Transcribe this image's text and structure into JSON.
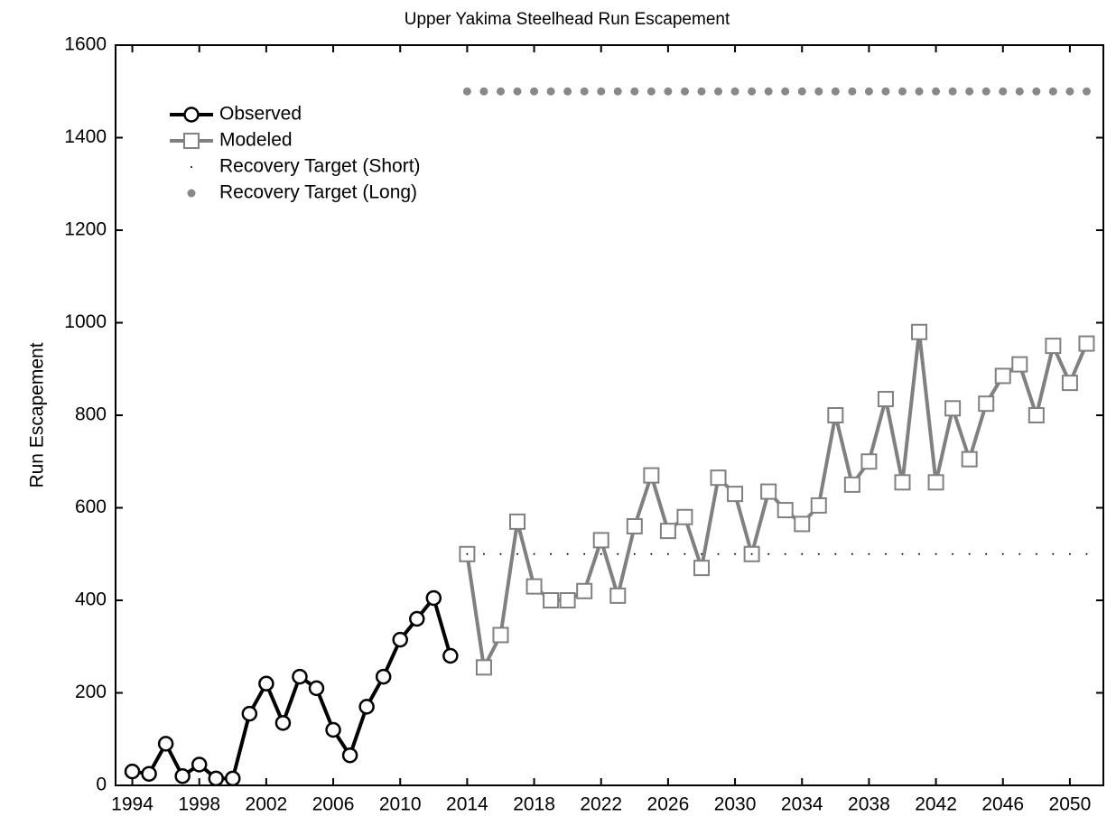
{
  "chart_data": {
    "type": "line",
    "title": "Upper Yakima Steelhead Run Escapement",
    "y_label": "Run Escapement",
    "xlim": [
      1993,
      2052
    ],
    "xticks": [
      1994,
      1998,
      2002,
      2006,
      2010,
      2014,
      2018,
      2022,
      2026,
      2030,
      2034,
      2038,
      2042,
      2046,
      2050
    ],
    "ylim": [
      0,
      1600
    ],
    "yticks": [
      0,
      200,
      400,
      600,
      800,
      1000,
      1200,
      1400,
      1600
    ],
    "legend": "upper left",
    "series": [
      {
        "name": "Observed",
        "color": "#000000",
        "marker": "circle",
        "style": "line",
        "x": [
          1994,
          1995,
          1996,
          1997,
          1998,
          1999,
          2000,
          2001,
          2002,
          2003,
          2004,
          2005,
          2006,
          2007,
          2008,
          2009,
          2010,
          2011,
          2012,
          2013
        ],
        "values": [
          30,
          25,
          90,
          20,
          45,
          15,
          15,
          155,
          220,
          135,
          235,
          210,
          120,
          65,
          170,
          235,
          315,
          360,
          405,
          280
        ]
      },
      {
        "name": "Modeled",
        "color": "#808080",
        "marker": "square",
        "style": "line",
        "x": [
          2014,
          2015,
          2016,
          2017,
          2018,
          2019,
          2020,
          2021,
          2022,
          2023,
          2024,
          2025,
          2026,
          2027,
          2028,
          2029,
          2030,
          2031,
          2032,
          2033,
          2034,
          2035,
          2036,
          2037,
          2038,
          2039,
          2040,
          2041,
          2042,
          2043,
          2044,
          2045,
          2046,
          2047,
          2048,
          2049,
          2050,
          2051
        ],
        "values": [
          500,
          255,
          325,
          570,
          430,
          400,
          400,
          420,
          530,
          410,
          560,
          670,
          550,
          580,
          470,
          665,
          630,
          500,
          635,
          595,
          565,
          605,
          800,
          650,
          700,
          835,
          655,
          980,
          655,
          815,
          705,
          825,
          885,
          910,
          800,
          950,
          870,
          955
        ]
      },
      {
        "name": "Recovery Target (Short)",
        "color": "#000000",
        "marker": "point",
        "style": "dots",
        "x": [
          2014,
          2015,
          2016,
          2017,
          2018,
          2019,
          2020,
          2021,
          2022,
          2023,
          2024,
          2025,
          2026,
          2027,
          2028,
          2029,
          2030,
          2031,
          2032,
          2033,
          2034,
          2035,
          2036,
          2037,
          2038,
          2039,
          2040,
          2041,
          2042,
          2043,
          2044,
          2045,
          2046,
          2047,
          2048,
          2049,
          2050,
          2051
        ],
        "values": [
          500,
          500,
          500,
          500,
          500,
          500,
          500,
          500,
          500,
          500,
          500,
          500,
          500,
          500,
          500,
          500,
          500,
          500,
          500,
          500,
          500,
          500,
          500,
          500,
          500,
          500,
          500,
          500,
          500,
          500,
          500,
          500,
          500,
          500,
          500,
          500,
          500,
          500
        ]
      },
      {
        "name": "Recovery Target (Long)",
        "color": "#888888",
        "marker": "dot",
        "style": "dots",
        "x": [
          2014,
          2015,
          2016,
          2017,
          2018,
          2019,
          2020,
          2021,
          2022,
          2023,
          2024,
          2025,
          2026,
          2027,
          2028,
          2029,
          2030,
          2031,
          2032,
          2033,
          2034,
          2035,
          2036,
          2037,
          2038,
          2039,
          2040,
          2041,
          2042,
          2043,
          2044,
          2045,
          2046,
          2047,
          2048,
          2049,
          2050,
          2051
        ],
        "values": [
          1500,
          1500,
          1500,
          1500,
          1500,
          1500,
          1500,
          1500,
          1500,
          1500,
          1500,
          1500,
          1500,
          1500,
          1500,
          1500,
          1500,
          1500,
          1500,
          1500,
          1500,
          1500,
          1500,
          1500,
          1500,
          1500,
          1500,
          1500,
          1500,
          1500,
          1500,
          1500,
          1500,
          1500,
          1500,
          1500,
          1500,
          1500
        ]
      }
    ]
  }
}
